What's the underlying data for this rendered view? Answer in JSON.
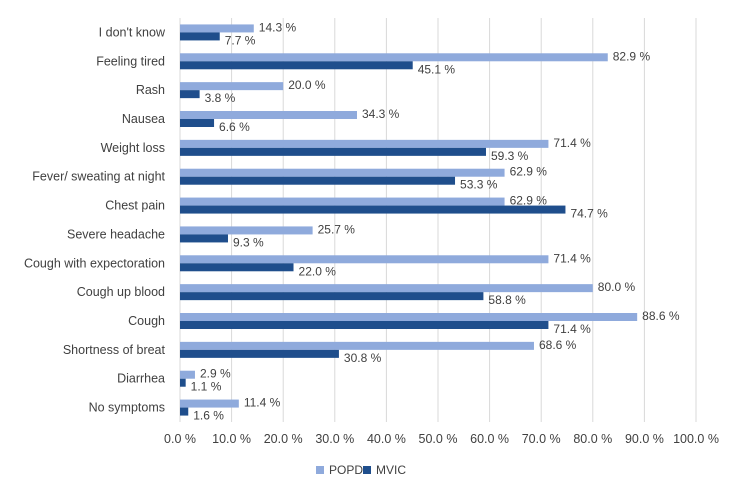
{
  "chart_data": {
    "type": "bar",
    "orientation": "horizontal",
    "categories": [
      "I don't know",
      "Feeling tired",
      "Rash",
      "Nausea",
      "Weight loss",
      "Fever/ sweating at night",
      "Chest pain",
      "Severe headache",
      "Cough with expectoration",
      "Cough up blood",
      "Cough",
      "Shortness of breat",
      "Diarrhea",
      "No symptoms"
    ],
    "series": [
      {
        "name": "POPD",
        "color": "#8faadc",
        "values": [
          14.3,
          82.9,
          20.0,
          34.3,
          71.4,
          62.9,
          62.9,
          25.7,
          71.4,
          80.0,
          88.6,
          68.6,
          2.9,
          11.4
        ],
        "labels": [
          "14.3 %",
          "82.9 %",
          "20.0 %",
          "34.3 %",
          "71.4 %",
          "62.9 %",
          "62.9 %",
          "25.7 %",
          "71.4 %",
          "80.0 %",
          "88.6 %",
          "68.6 %",
          "2.9 %",
          "11.4 %"
        ]
      },
      {
        "name": "MVIC",
        "color": "#1f4e8c",
        "values": [
          7.7,
          45.1,
          3.8,
          6.6,
          59.3,
          53.3,
          74.7,
          9.3,
          22.0,
          58.8,
          71.4,
          30.8,
          1.1,
          1.6
        ],
        "labels": [
          "7.7 %",
          "45.1 %",
          "3.8 %",
          "6.6 %",
          "59.3 %",
          "53.3 %",
          "74.7 %",
          "9.3 %",
          "22.0 %",
          "58.8 %",
          "71.4 %",
          "30.8 %",
          "1.1 %",
          "1.6 %"
        ]
      }
    ],
    "xlim": [
      0,
      100
    ],
    "x_ticks": [
      "0.0 %",
      "10.0 %",
      "20.0 %",
      "30.0 %",
      "40.0 %",
      "50.0 %",
      "60.0 %",
      "70.0 %",
      "80.0 %",
      "90.0 %",
      "100.0 %"
    ],
    "grid": "vertical",
    "legend": {
      "position": "bottom",
      "entries": [
        "POPD",
        "MVIC"
      ]
    },
    "title": "",
    "xlabel": "",
    "ylabel": ""
  }
}
